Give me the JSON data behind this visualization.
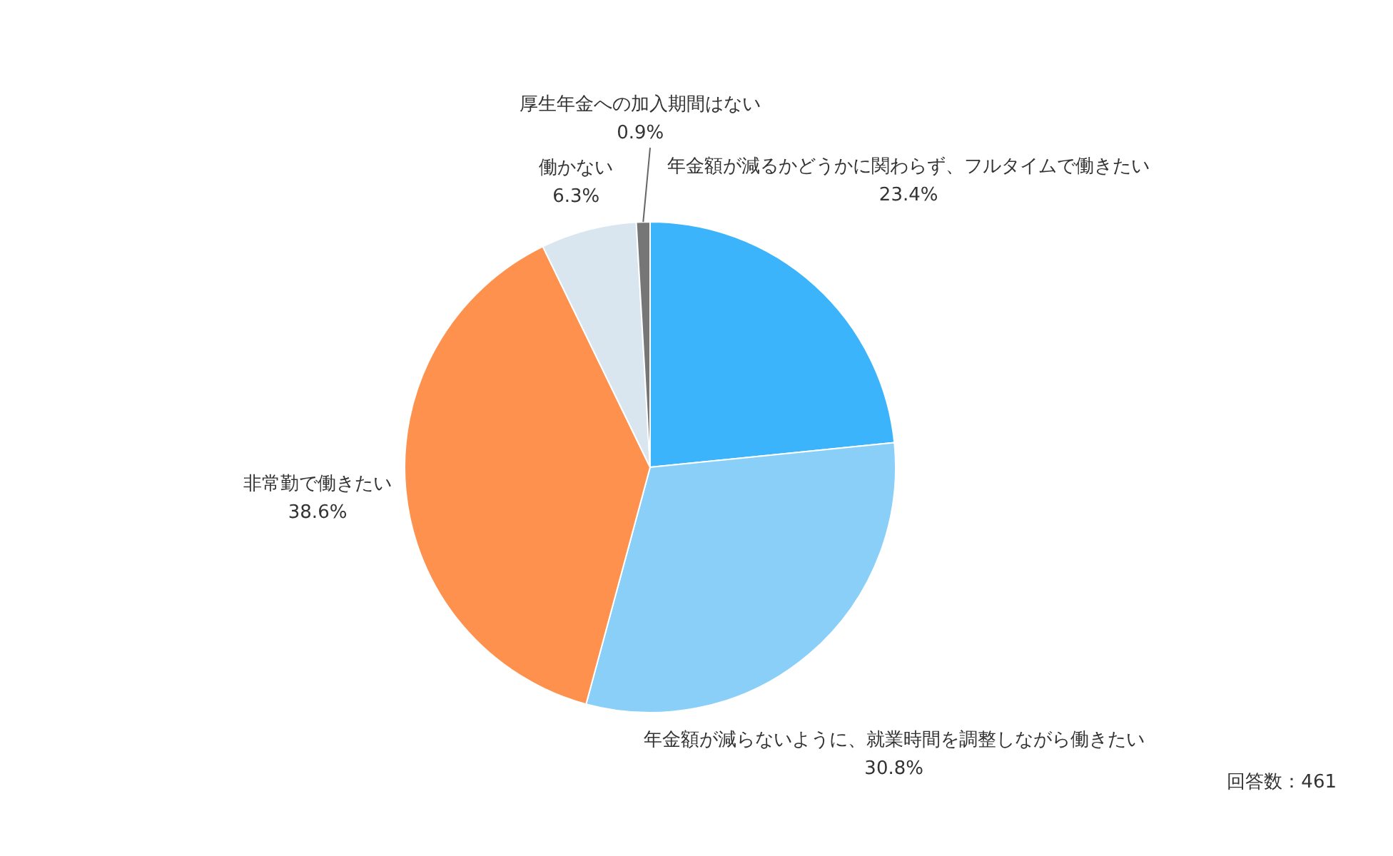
{
  "chart_data": {
    "type": "pie",
    "categories": [
      "年金額が減るかどうかに関わらず、フルタイムで働きたい",
      "年金額が減らないように、就業時間を調整しながら働きたい",
      "非常勤で働きたい",
      "働かない",
      "厚生年金への加入期間はない"
    ],
    "values": [
      23.4,
      30.8,
      38.6,
      6.3,
      0.9
    ],
    "value_labels": [
      "23.4%",
      "30.8%",
      "38.6%",
      "6.3%",
      "0.9%"
    ],
    "colors": [
      "#3bb4fb",
      "#8acff8",
      "#fd914d",
      "#d9e6ef",
      "#767676"
    ],
    "annotations": [
      "回答数：461"
    ]
  }
}
